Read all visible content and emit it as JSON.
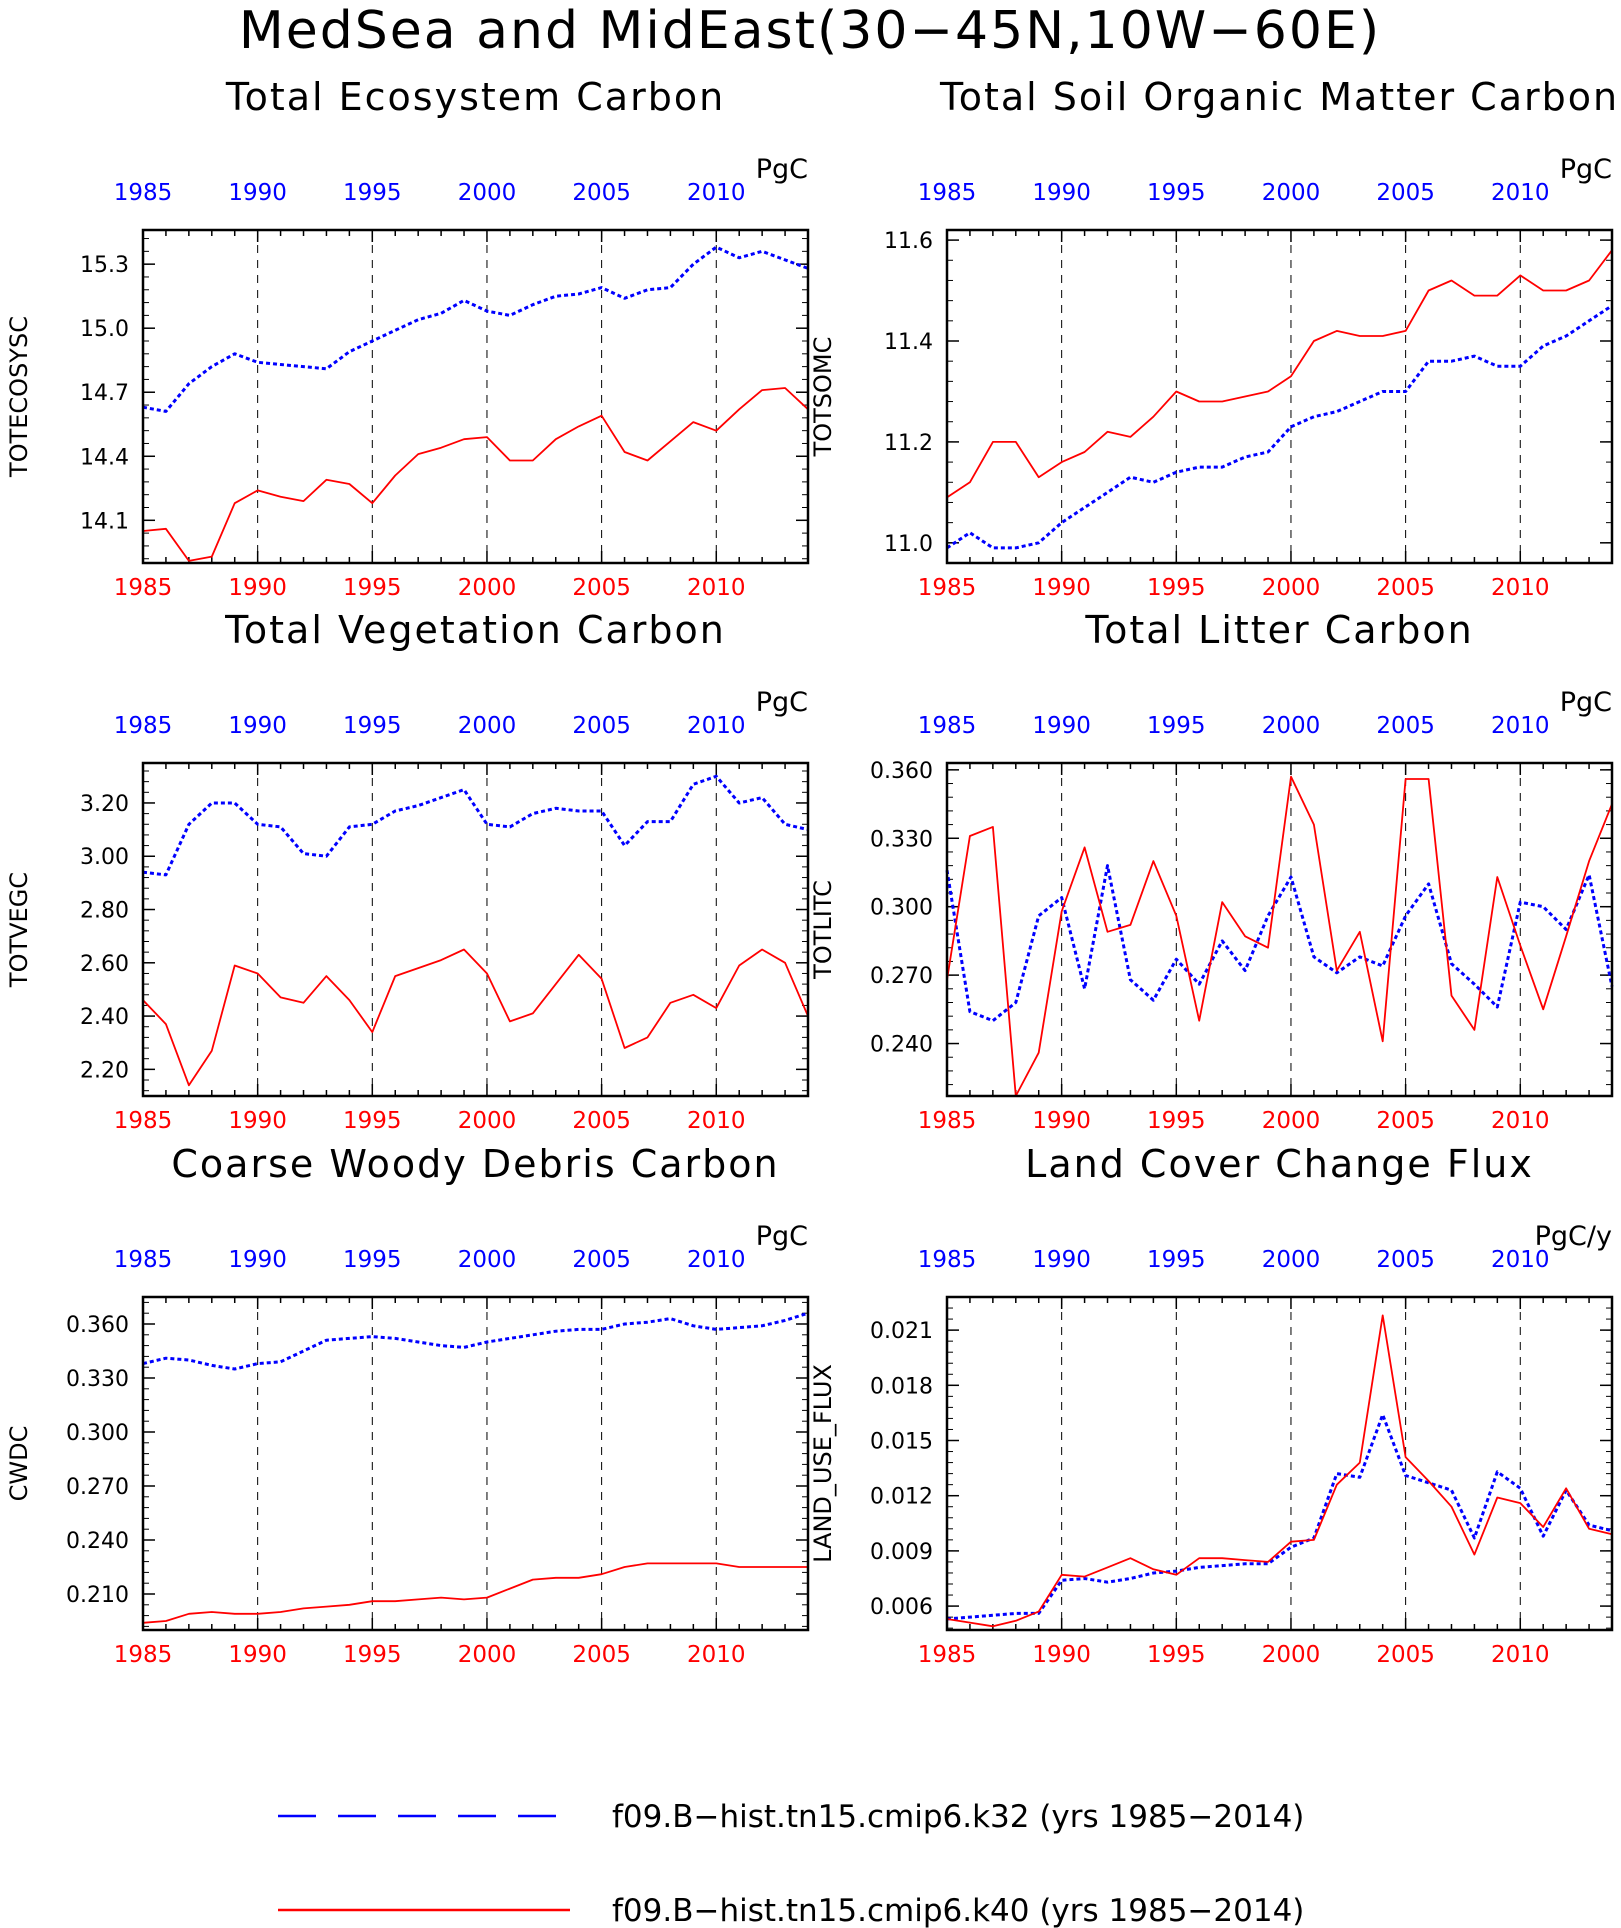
{
  "figure_title": "MedSea and MidEast(30−45N,10W−60E)",
  "colors": {
    "k32": "#0000ff",
    "k40": "#ff0000"
  },
  "legend": [
    {
      "label": "f09.B−hist.tn15.cmip6.k32 (yrs 1985−2014)",
      "color": "#0000ff",
      "style": "dashed"
    },
    {
      "label": "f09.B−hist.tn15.cmip6.k40 (yrs 1985−2014)",
      "color": "#ff0000",
      "style": "solid"
    }
  ],
  "chart_data": [
    {
      "type": "line",
      "title": "Total Ecosystem Carbon",
      "ylabel": "TOTECOSYSC",
      "units": "PgC",
      "x": [
        1985,
        1986,
        1987,
        1988,
        1989,
        1990,
        1991,
        1992,
        1993,
        1994,
        1995,
        1996,
        1997,
        1998,
        1999,
        2000,
        2001,
        2002,
        2003,
        2004,
        2005,
        2006,
        2007,
        2008,
        2009,
        2010,
        2011,
        2012,
        2013,
        2014
      ],
      "xticks": [
        "1985",
        "1990",
        "1995",
        "2000",
        "2005",
        "2010"
      ],
      "xlim": [
        1985,
        2014
      ],
      "ylim": [
        13.9,
        15.46
      ],
      "yticks": [
        "14.1",
        "14.4",
        "14.7",
        "15.0",
        "15.3"
      ],
      "grid_x": [
        1990,
        1995,
        2000,
        2005,
        2010
      ],
      "series": [
        {
          "name": "f09.B-hist.tn15.cmip6.k32",
          "style": "dashed",
          "color": "#0000ff",
          "values": [
            14.63,
            14.61,
            14.74,
            14.82,
            14.88,
            14.84,
            14.83,
            14.82,
            14.81,
            14.89,
            14.94,
            14.99,
            15.04,
            15.07,
            15.13,
            15.08,
            15.06,
            15.11,
            15.15,
            15.16,
            15.19,
            15.14,
            15.18,
            15.19,
            15.3,
            15.38,
            15.33,
            15.36,
            15.32,
            15.28
          ]
        },
        {
          "name": "f09.B-hist.tn15.cmip6.k40",
          "style": "solid",
          "color": "#ff0000",
          "values": [
            14.05,
            14.06,
            13.91,
            13.93,
            14.18,
            14.24,
            14.21,
            14.19,
            14.29,
            14.27,
            14.18,
            14.31,
            14.41,
            14.44,
            14.48,
            14.49,
            14.38,
            14.38,
            14.48,
            14.54,
            14.59,
            14.42,
            14.38,
            14.47,
            14.56,
            14.52,
            14.62,
            14.71,
            14.72,
            14.62
          ]
        }
      ]
    },
    {
      "type": "line",
      "title": "Total Soil Organic Matter Carbon",
      "ylabel": "TOTSOMC",
      "units": "PgC",
      "x": [
        1985,
        1986,
        1987,
        1988,
        1989,
        1990,
        1991,
        1992,
        1993,
        1994,
        1995,
        1996,
        1997,
        1998,
        1999,
        2000,
        2001,
        2002,
        2003,
        2004,
        2005,
        2006,
        2007,
        2008,
        2009,
        2010,
        2011,
        2012,
        2013,
        2014
      ],
      "xticks": [
        "1985",
        "1990",
        "1995",
        "2000",
        "2005",
        "2010"
      ],
      "xlim": [
        1985,
        2014
      ],
      "ylim": [
        10.96,
        11.62
      ],
      "yticks": [
        "11.0",
        "11.2",
        "11.4",
        "11.6"
      ],
      "grid_x": [
        1990,
        1995,
        2000,
        2005,
        2010
      ],
      "series": [
        {
          "name": "f09.B-hist.tn15.cmip6.k32",
          "style": "dashed",
          "color": "#0000ff",
          "values": [
            10.99,
            11.02,
            10.99,
            10.99,
            11.0,
            11.04,
            11.07,
            11.1,
            11.13,
            11.12,
            11.14,
            11.15,
            11.15,
            11.17,
            11.18,
            11.23,
            11.25,
            11.26,
            11.28,
            11.3,
            11.3,
            11.36,
            11.36,
            11.37,
            11.35,
            11.35,
            11.39,
            11.41,
            11.44,
            11.47
          ]
        },
        {
          "name": "f09.B-hist.tn15.cmip6.k40",
          "style": "solid",
          "color": "#ff0000",
          "values": [
            11.09,
            11.12,
            11.2,
            11.2,
            11.13,
            11.16,
            11.18,
            11.22,
            11.21,
            11.25,
            11.3,
            11.28,
            11.28,
            11.29,
            11.3,
            11.33,
            11.4,
            11.42,
            11.41,
            11.41,
            11.42,
            11.5,
            11.52,
            11.49,
            11.49,
            11.53,
            11.5,
            11.5,
            11.52,
            11.58
          ]
        }
      ]
    },
    {
      "type": "line",
      "title": "Total Vegetation Carbon",
      "ylabel": "TOTVEGC",
      "units": "PgC",
      "x": [
        1985,
        1986,
        1987,
        1988,
        1989,
        1990,
        1991,
        1992,
        1993,
        1994,
        1995,
        1996,
        1997,
        1998,
        1999,
        2000,
        2001,
        2002,
        2003,
        2004,
        2005,
        2006,
        2007,
        2008,
        2009,
        2010,
        2011,
        2012,
        2013,
        2014
      ],
      "xticks": [
        "1985",
        "1990",
        "1995",
        "2000",
        "2005",
        "2010"
      ],
      "xlim": [
        1985,
        2014
      ],
      "ylim": [
        2.1,
        3.35
      ],
      "yticks": [
        "2.20",
        "2.40",
        "2.60",
        "2.80",
        "3.00",
        "3.20"
      ],
      "grid_x": [
        1990,
        1995,
        2000,
        2005,
        2010
      ],
      "series": [
        {
          "name": "f09.B-hist.tn15.cmip6.k32",
          "style": "dashed",
          "color": "#0000ff",
          "values": [
            2.94,
            2.93,
            3.12,
            3.2,
            3.2,
            3.12,
            3.11,
            3.01,
            3.0,
            3.11,
            3.12,
            3.17,
            3.19,
            3.22,
            3.25,
            3.12,
            3.11,
            3.16,
            3.18,
            3.17,
            3.17,
            3.04,
            3.13,
            3.13,
            3.27,
            3.3,
            3.2,
            3.22,
            3.12,
            3.1
          ]
        },
        {
          "name": "f09.B-hist.tn15.cmip6.k40",
          "style": "solid",
          "color": "#ff0000",
          "values": [
            2.46,
            2.37,
            2.14,
            2.27,
            2.59,
            2.56,
            2.47,
            2.45,
            2.55,
            2.46,
            2.34,
            2.55,
            2.58,
            2.61,
            2.65,
            2.56,
            2.38,
            2.41,
            2.52,
            2.63,
            2.54,
            2.28,
            2.32,
            2.45,
            2.48,
            2.43,
            2.59,
            2.65,
            2.6,
            2.4
          ]
        }
      ]
    },
    {
      "type": "line",
      "title": "Total Litter Carbon",
      "ylabel": "TOTLITC",
      "units": "PgC",
      "x": [
        1985,
        1986,
        1987,
        1988,
        1989,
        1990,
        1991,
        1992,
        1993,
        1994,
        1995,
        1996,
        1997,
        1998,
        1999,
        2000,
        2001,
        2002,
        2003,
        2004,
        2005,
        2006,
        2007,
        2008,
        2009,
        2010,
        2011,
        2012,
        2013,
        2014
      ],
      "xticks": [
        "1985",
        "1990",
        "1995",
        "2000",
        "2005",
        "2010"
      ],
      "xlim": [
        1985,
        2014
      ],
      "ylim": [
        0.217,
        0.363
      ],
      "yticks": [
        "0.240",
        "0.270",
        "0.300",
        "0.330",
        "0.360"
      ],
      "grid_x": [
        1990,
        1995,
        2000,
        2005,
        2010
      ],
      "series": [
        {
          "name": "f09.B-hist.tn15.cmip6.k32",
          "style": "dashed",
          "color": "#0000ff",
          "values": [
            0.316,
            0.254,
            0.25,
            0.258,
            0.296,
            0.304,
            0.264,
            0.318,
            0.268,
            0.259,
            0.277,
            0.266,
            0.285,
            0.272,
            0.296,
            0.313,
            0.278,
            0.271,
            0.278,
            0.274,
            0.296,
            0.31,
            0.275,
            0.266,
            0.256,
            0.302,
            0.3,
            0.29,
            0.314,
            0.265
          ]
        },
        {
          "name": "f09.B-hist.tn15.cmip6.k40",
          "style": "solid",
          "color": "#ff0000",
          "values": [
            0.268,
            0.331,
            0.335,
            0.217,
            0.236,
            0.298,
            0.326,
            0.289,
            0.292,
            0.32,
            0.296,
            0.25,
            0.302,
            0.287,
            0.282,
            0.357,
            0.336,
            0.272,
            0.289,
            0.241,
            0.356,
            0.356,
            0.261,
            0.246,
            0.313,
            0.283,
            0.255,
            0.287,
            0.32,
            0.345
          ]
        }
      ]
    },
    {
      "type": "line",
      "title": "Coarse Woody Debris Carbon",
      "ylabel": "CWDC",
      "units": "PgC",
      "x": [
        1985,
        1986,
        1987,
        1988,
        1989,
        1990,
        1991,
        1992,
        1993,
        1994,
        1995,
        1996,
        1997,
        1998,
        1999,
        2000,
        2001,
        2002,
        2003,
        2004,
        2005,
        2006,
        2007,
        2008,
        2009,
        2010,
        2011,
        2012,
        2013,
        2014
      ],
      "xticks": [
        "1985",
        "1990",
        "1995",
        "2000",
        "2005",
        "2010"
      ],
      "xlim": [
        1985,
        2014
      ],
      "ylim": [
        0.19,
        0.375
      ],
      "yticks": [
        "0.210",
        "0.240",
        "0.270",
        "0.300",
        "0.330",
        "0.360"
      ],
      "grid_x": [
        1990,
        1995,
        2000,
        2005,
        2010
      ],
      "series": [
        {
          "name": "f09.B-hist.tn15.cmip6.k32",
          "style": "dashed",
          "color": "#0000ff",
          "values": [
            0.338,
            0.341,
            0.34,
            0.337,
            0.335,
            0.338,
            0.339,
            0.345,
            0.351,
            0.352,
            0.353,
            0.352,
            0.35,
            0.348,
            0.347,
            0.35,
            0.352,
            0.354,
            0.356,
            0.357,
            0.357,
            0.36,
            0.361,
            0.363,
            0.359,
            0.357,
            0.358,
            0.359,
            0.362,
            0.366
          ]
        },
        {
          "name": "f09.B-hist.tn15.cmip6.k40",
          "style": "solid",
          "color": "#ff0000",
          "values": [
            0.194,
            0.195,
            0.199,
            0.2,
            0.199,
            0.199,
            0.2,
            0.202,
            0.203,
            0.204,
            0.206,
            0.206,
            0.207,
            0.208,
            0.207,
            0.208,
            0.213,
            0.218,
            0.219,
            0.219,
            0.221,
            0.225,
            0.227,
            0.227,
            0.227,
            0.227,
            0.225,
            0.225,
            0.225,
            0.225
          ]
        }
      ]
    },
    {
      "type": "line",
      "title": "Land Cover Change Flux",
      "ylabel": "LAND_USE_FLUX",
      "units": "PgC/y",
      "x": [
        1985,
        1986,
        1987,
        1988,
        1989,
        1990,
        1991,
        1992,
        1993,
        1994,
        1995,
        1996,
        1997,
        1998,
        1999,
        2000,
        2001,
        2002,
        2003,
        2004,
        2005,
        2006,
        2007,
        2008,
        2009,
        2010,
        2011,
        2012,
        2013,
        2014
      ],
      "xticks": [
        "1985",
        "1990",
        "1995",
        "2000",
        "2005",
        "2010"
      ],
      "xlim": [
        1985,
        2014
      ],
      "ylim": [
        0.0047,
        0.0228
      ],
      "yticks": [
        "0.006",
        "0.009",
        "0.012",
        "0.015",
        "0.018",
        "0.021"
      ],
      "grid_x": [
        1990,
        1995,
        2000,
        2005,
        2010
      ],
      "series": [
        {
          "name": "f09.B-hist.tn15.cmip6.k32",
          "style": "dashed",
          "color": "#0000ff",
          "values": [
            0.0053,
            0.0054,
            0.0055,
            0.0056,
            0.0056,
            0.0074,
            0.0075,
            0.0073,
            0.0075,
            0.0078,
            0.0079,
            0.0081,
            0.0082,
            0.0083,
            0.0083,
            0.0092,
            0.0097,
            0.0132,
            0.013,
            0.0164,
            0.0131,
            0.0127,
            0.0123,
            0.0097,
            0.0133,
            0.0124,
            0.0098,
            0.0123,
            0.0104,
            0.0101
          ]
        },
        {
          "name": "f09.B-hist.tn15.cmip6.k40",
          "style": "solid",
          "color": "#ff0000",
          "values": [
            0.0053,
            0.0051,
            0.0049,
            0.0052,
            0.0057,
            0.0077,
            0.0076,
            0.0081,
            0.0086,
            0.008,
            0.0077,
            0.0086,
            0.0086,
            0.0085,
            0.0084,
            0.0095,
            0.0096,
            0.0126,
            0.0138,
            0.0218,
            0.0141,
            0.0128,
            0.0114,
            0.0088,
            0.0119,
            0.0116,
            0.0103,
            0.0124,
            0.0102,
            0.0099
          ]
        }
      ]
    }
  ]
}
